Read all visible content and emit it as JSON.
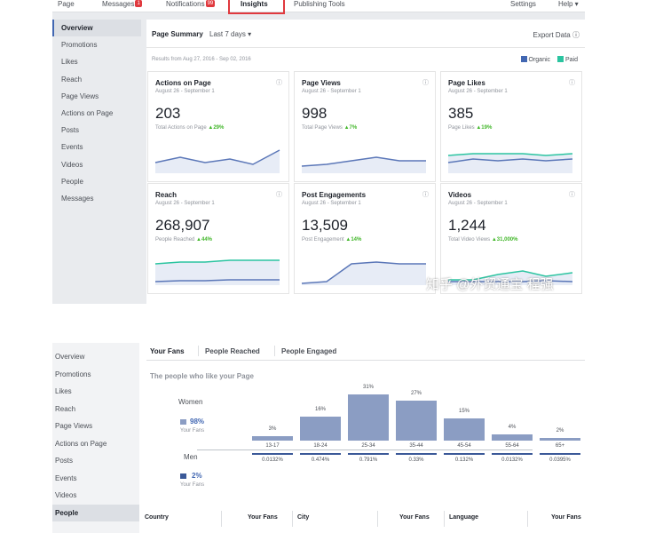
{
  "topnav": {
    "items": [
      "Page",
      "Messages",
      "Notifications",
      "Insights",
      "Publishing Tools",
      "Settings",
      "Help ▾"
    ],
    "messages_badge": "1",
    "notifications_badge": "99"
  },
  "sidebar_top": [
    "Overview",
    "Promotions",
    "Likes",
    "Reach",
    "Page Views",
    "Actions on Page",
    "Posts",
    "Events",
    "Videos",
    "People",
    "Messages"
  ],
  "summary": {
    "title": "Page Summary",
    "range": "Last 7 days ▾",
    "export": "Export Data",
    "results": "Results from Aug 27, 2016 - Sep 02, 2016",
    "legend": [
      {
        "label": "Organic",
        "color": "#4267b2"
      },
      {
        "label": "Paid",
        "color": "#2bc4a0"
      }
    ]
  },
  "cards": [
    {
      "title": "Actions on Page",
      "date": "August 26 - September 1",
      "value": "203",
      "sub": "Total Actions on Page",
      "change": "▲29%"
    },
    {
      "title": "Page Views",
      "date": "August 26 - September 1",
      "value": "998",
      "sub": "Total Page Views",
      "change": "▲7%"
    },
    {
      "title": "Page Likes",
      "date": "August 26 - September 1",
      "value": "385",
      "sub": "Page Likes",
      "change": "▲19%"
    },
    {
      "title": "Reach",
      "date": "August 26 - September 1",
      "value": "268,907",
      "sub": "People Reached",
      "change": "▲44%"
    },
    {
      "title": "Post Engagements",
      "date": "August 26 - September 1",
      "value": "13,509",
      "sub": "Post Engagement",
      "change": "▲14%"
    },
    {
      "title": "Videos",
      "date": "August 26 - September 1",
      "value": "1,244",
      "sub": "Total Video Views",
      "change": "▲31,000%"
    }
  ],
  "watermark": "知乎 @外贸通宝 程强",
  "sidebar_bottom": [
    "Overview",
    "Promotions",
    "Likes",
    "Reach",
    "Page Views",
    "Actions on Page",
    "Posts",
    "Events",
    "Videos",
    "People"
  ],
  "tabs": [
    "Your Fans",
    "People Reached",
    "People Engaged"
  ],
  "likes_title": "The people who like your Page",
  "women": {
    "label": "Women",
    "pct": "98%",
    "sub": "Your Fans"
  },
  "men": {
    "label": "Men",
    "pct": "2%",
    "sub": "Your Fans"
  },
  "age_chart": {
    "groups": [
      "13-17",
      "18-24",
      "25-34",
      "35-44",
      "45-54",
      "55-64",
      "65+"
    ],
    "percent_labels": [
      "3%",
      "16%",
      "31%",
      "27%",
      "15%",
      "4%",
      "2%"
    ],
    "values": [
      3,
      16,
      31,
      27,
      15,
      4,
      2
    ],
    "fb_average": [
      "0.0132%",
      "0.474%",
      "0.791%",
      "0.33%",
      "0.132%",
      "0.0132%",
      "0.0395%"
    ]
  },
  "table_headers": [
    "Country",
    "Your Fans",
    "City",
    "Your Fans",
    "Language",
    "Your Fans"
  ]
}
